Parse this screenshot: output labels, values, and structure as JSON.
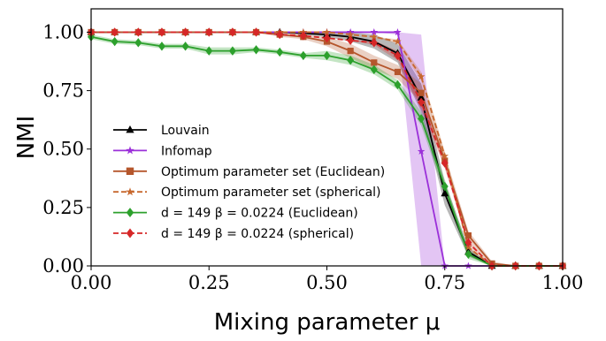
{
  "chart_data": {
    "type": "line",
    "xlabel": "Mixing parameter μ",
    "ylabel": "NMI",
    "xlim": [
      0,
      1
    ],
    "ylim": [
      0,
      1.1
    ],
    "xticks": [
      0,
      0.25,
      0.5,
      0.75,
      1
    ],
    "yticks": [
      0,
      0.25,
      0.5,
      0.75,
      1
    ],
    "xtick_labels": [
      "0.00",
      "0.25",
      "0.50",
      "0.75",
      "1.00"
    ],
    "ytick_labels": [
      "0.00",
      "0.25",
      "0.50",
      "0.75",
      "1.00"
    ],
    "legend_position": "lower-left",
    "x": [
      0,
      0.05,
      0.1,
      0.15,
      0.2,
      0.25,
      0.3,
      0.35,
      0.4,
      0.45,
      0.5,
      0.55,
      0.6,
      0.65,
      0.7,
      0.75,
      0.8,
      0.85,
      0.9,
      0.95,
      1.0
    ],
    "series": [
      {
        "name": "Louvain",
        "color": "#000000",
        "marker": "triangle",
        "dash": "solid",
        "values": [
          1,
          1,
          1,
          1,
          1,
          1,
          1,
          1,
          1,
          0.995,
          0.99,
          0.98,
          0.96,
          0.91,
          0.72,
          0.31,
          0.06,
          0.0,
          0.0,
          0.0,
          0.0
        ],
        "band": [
          0,
          0,
          0,
          0,
          0,
          0,
          0,
          0,
          0,
          0.005,
          0.01,
          0.02,
          0.03,
          0.04,
          0.06,
          0.05,
          0.02,
          0,
          0,
          0,
          0
        ]
      },
      {
        "name": "Infomap",
        "color": "#9b30d9",
        "marker": "star",
        "dash": "solid",
        "values": [
          1,
          1,
          1,
          1,
          1,
          1,
          1,
          1,
          1,
          1,
          1,
          1,
          1,
          1,
          0.49,
          0.0,
          0.0,
          0.0,
          0.0,
          0.0,
          0.0
        ],
        "band": [
          0,
          0,
          0,
          0,
          0,
          0,
          0,
          0,
          0,
          0,
          0,
          0,
          0,
          0.01,
          0.5,
          0,
          0,
          0,
          0,
          0,
          0
        ]
      },
      {
        "name": "Optimum parameter set (Euclidean)",
        "color": "#b5562c",
        "marker": "square",
        "dash": "solid",
        "values": [
          1,
          1,
          1,
          1,
          1,
          1,
          1,
          1,
          0.99,
          0.98,
          0.96,
          0.92,
          0.87,
          0.83,
          0.74,
          0.45,
          0.13,
          0.01,
          0.0,
          0.0,
          0.0
        ],
        "band": [
          0,
          0,
          0,
          0,
          0,
          0,
          0,
          0,
          0.01,
          0.01,
          0.02,
          0.03,
          0.03,
          0.03,
          0.04,
          0.03,
          0.02,
          0.01,
          0,
          0,
          0
        ]
      },
      {
        "name": "Optimum parameter set (spherical)",
        "color": "#c7682e",
        "marker": "star",
        "dash": "dashed",
        "values": [
          1,
          1,
          1,
          1,
          1,
          1,
          1,
          1,
          1,
          1,
          1,
          0.99,
          0.98,
          0.96,
          0.81,
          0.47,
          0.08,
          0.0,
          0.0,
          0.0,
          0.0
        ],
        "band": [
          0,
          0,
          0,
          0,
          0,
          0,
          0,
          0,
          0,
          0,
          0,
          0,
          0,
          0.01,
          0.02,
          0.02,
          0.01,
          0,
          0,
          0,
          0
        ]
      },
      {
        "name": "d = 149 β = 0.0224 (Euclidean)",
        "color": "#2ca02c",
        "marker": "diamond",
        "dash": "solid",
        "values": [
          0.98,
          0.96,
          0.955,
          0.94,
          0.94,
          0.92,
          0.92,
          0.925,
          0.915,
          0.9,
          0.9,
          0.88,
          0.84,
          0.775,
          0.63,
          0.34,
          0.05,
          0.0,
          0.0,
          0.0,
          0.0
        ],
        "band": [
          0.01,
          0.01,
          0.01,
          0.01,
          0.01,
          0.015,
          0.015,
          0.01,
          0.01,
          0.01,
          0.02,
          0.02,
          0.02,
          0.02,
          0.03,
          0.03,
          0.02,
          0,
          0,
          0,
          0
        ]
      },
      {
        "name": "d = 149 β = 0.0224 (spherical)",
        "color": "#d62728",
        "marker": "diamond",
        "dash": "dashed",
        "values": [
          1,
          1,
          1,
          1,
          1,
          1,
          1,
          1,
          0.99,
          0.985,
          0.975,
          0.965,
          0.955,
          0.9,
          0.7,
          0.44,
          0.1,
          0.0,
          0.0,
          0.0,
          0.0
        ],
        "band": [
          0,
          0,
          0,
          0,
          0,
          0,
          0,
          0,
          0,
          0,
          0,
          0,
          0.01,
          0.02,
          0.03,
          0.02,
          0.01,
          0,
          0,
          0,
          0
        ]
      }
    ]
  }
}
